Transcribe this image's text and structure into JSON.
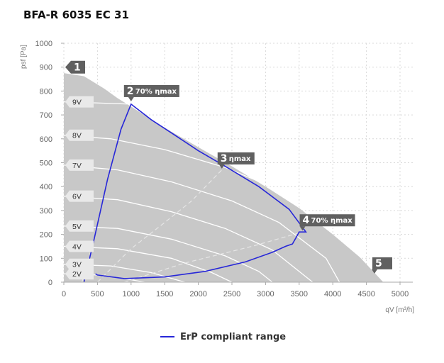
{
  "title": "BFA-R 6035 EC 31",
  "colors": {
    "envelope": "#c8c8c8",
    "erp": "#2727d8",
    "grid": "#d9d9d9",
    "speed_line": "#ffffff",
    "eta_line": "#e6e6e6",
    "marker": "#606060"
  },
  "legend": {
    "label": "ErP compliant range"
  },
  "chart_data": {
    "type": "line",
    "xlabel": "qV [m³/h]",
    "ylabel": "psf [Pa]",
    "xlim": [
      0,
      5000
    ],
    "ylim": [
      0,
      1000
    ],
    "xticks": [
      0,
      500,
      1000,
      1500,
      2000,
      2500,
      3000,
      3500,
      4000,
      4500,
      5000
    ],
    "yticks": [
      0,
      100,
      200,
      300,
      400,
      500,
      600,
      700,
      800,
      900,
      1000
    ],
    "envelope": [
      [
        0,
        875
      ],
      [
        300,
        862
      ],
      [
        600,
        810
      ],
      [
        800,
        770
      ],
      [
        1000,
        735
      ],
      [
        1300,
        680
      ],
      [
        1600,
        630
      ],
      [
        2000,
        565
      ],
      [
        2500,
        485
      ],
      [
        3000,
        400
      ],
      [
        3500,
        310
      ],
      [
        4000,
        200
      ],
      [
        4400,
        105
      ],
      [
        4700,
        15
      ],
      [
        4750,
        0
      ],
      [
        0,
        0
      ]
    ],
    "speed_curves": [
      {
        "label": "9V",
        "points": [
          [
            0,
            755
          ],
          [
            1000,
            745
          ]
        ]
      },
      {
        "label": "8V",
        "points": [
          [
            0,
            615
          ],
          [
            700,
            600
          ],
          [
            1500,
            555
          ],
          [
            2400,
            480
          ],
          [
            3000,
            410
          ],
          [
            3500,
            312
          ]
        ]
      },
      {
        "label": "7V",
        "points": [
          [
            0,
            490
          ],
          [
            800,
            470
          ],
          [
            1600,
            420
          ],
          [
            2500,
            340
          ],
          [
            3200,
            250
          ],
          [
            3900,
            100
          ],
          [
            4100,
            0
          ]
        ]
      },
      {
        "label": "6V",
        "points": [
          [
            0,
            360
          ],
          [
            800,
            345
          ],
          [
            1600,
            295
          ],
          [
            2400,
            225
          ],
          [
            3100,
            135
          ],
          [
            3700,
            0
          ]
        ]
      },
      {
        "label": "5V",
        "points": [
          [
            0,
            235
          ],
          [
            800,
            225
          ],
          [
            1600,
            180
          ],
          [
            2400,
            110
          ],
          [
            2900,
            45
          ],
          [
            3100,
            0
          ]
        ]
      },
      {
        "label": "4V",
        "points": [
          [
            0,
            150
          ],
          [
            800,
            140
          ],
          [
            1600,
            100
          ],
          [
            2200,
            40
          ],
          [
            2500,
            0
          ]
        ]
      },
      {
        "label": "3V",
        "points": [
          [
            0,
            75
          ],
          [
            700,
            68
          ],
          [
            1300,
            40
          ],
          [
            1800,
            0
          ]
        ]
      },
      {
        "label": "2V",
        "points": [
          [
            0,
            35
          ],
          [
            500,
            30
          ],
          [
            900,
            15
          ],
          [
            1200,
            0
          ]
        ]
      }
    ],
    "efficiency_curves": [
      {
        "points": [
          [
            270,
            0
          ],
          [
            450,
            180
          ],
          [
            650,
            430
          ],
          [
            850,
            640
          ],
          [
            1000,
            745
          ]
        ]
      },
      {
        "points": [
          [
            500,
            0
          ],
          [
            1000,
            140
          ],
          [
            1500,
            250
          ],
          [
            1900,
            340
          ],
          [
            2350,
            470
          ]
        ]
      },
      {
        "points": [
          [
            900,
            0
          ],
          [
            1800,
            80
          ],
          [
            2800,
            150
          ],
          [
            3550,
            210
          ]
        ]
      }
    ],
    "erp_range": [
      [
        470,
        35
      ],
      [
        500,
        30
      ],
      [
        900,
        15
      ],
      [
        1500,
        22
      ],
      [
        2100,
        45
      ],
      [
        2700,
        85
      ],
      [
        3100,
        125
      ],
      [
        3300,
        150
      ],
      [
        3400,
        160
      ],
      [
        3450,
        185
      ],
      [
        3500,
        210
      ],
      [
        3600,
        210
      ],
      [
        3350,
        305
      ],
      [
        2900,
        400
      ],
      [
        2400,
        485
      ],
      [
        2000,
        550
      ],
      [
        1600,
        625
      ],
      [
        1300,
        680
      ],
      [
        1000,
        745
      ],
      [
        850,
        640
      ],
      [
        650,
        430
      ],
      [
        450,
        180
      ],
      [
        300,
        0
      ]
    ],
    "operating_points": [
      {
        "id": "1",
        "label": "",
        "x": 0,
        "y": 900
      },
      {
        "id": "2",
        "label": "70% ηmax",
        "x": 1000,
        "y": 745
      },
      {
        "id": "3",
        "label": "ηmax",
        "x": 2350,
        "y": 475
      },
      {
        "id": "4",
        "label": "70% ηmax",
        "x": 3550,
        "y": 210
      },
      {
        "id": "5",
        "label": "",
        "x": 4620,
        "y": 30
      }
    ],
    "grid": true,
    "legend_position": "bottom-center"
  }
}
